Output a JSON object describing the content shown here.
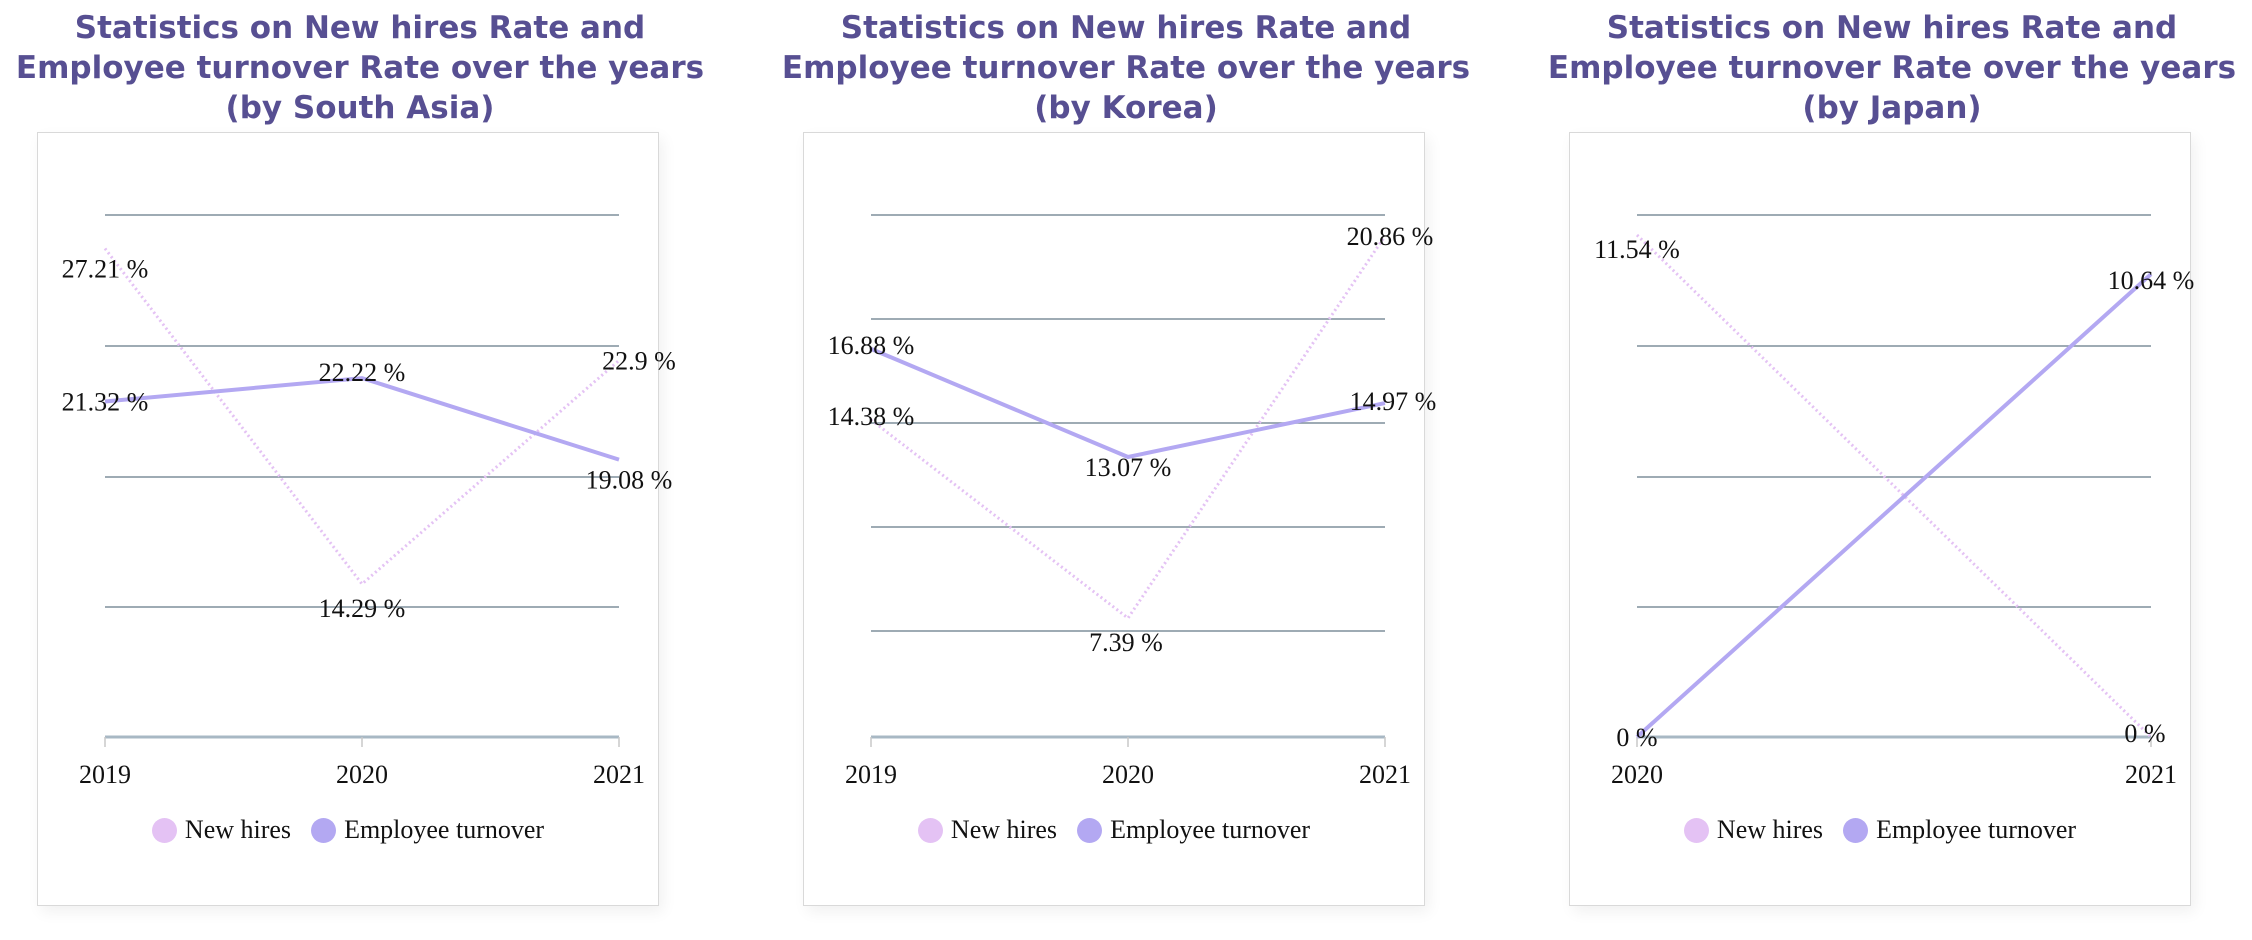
{
  "colors": {
    "new_hires": "#e4c2f4",
    "turnover": "#b3a8f2",
    "title": "#574f92",
    "grid": "#7f8f9c"
  },
  "charts": [
    {
      "title_lines": [
        "Statistics on New hires Rate and",
        "Employee turnover Rate over the years",
        "(by South Asia)"
      ],
      "legend": [
        "New hires",
        "Employee turnover"
      ],
      "chart_data": {
        "type": "line",
        "categories": [
          "2019",
          "2020",
          "2021"
        ],
        "series": [
          {
            "name": "New hires",
            "values": [
              27.21,
              14.29,
              22.9
            ],
            "labels": [
              "27.21 %",
              "14.29 %",
              "22.9 %"
            ]
          },
          {
            "name": "Employee turnover",
            "values": [
              21.32,
              22.22,
              19.08
            ],
            "labels": [
              "21.32 %",
              "22.22 %",
              "19.08 %"
            ]
          }
        ],
        "ylim": [
          8.4,
          28.5
        ],
        "grid": true,
        "legend_position": "bottom"
      }
    },
    {
      "title_lines": [
        "Statistics on New hires Rate and",
        "Employee turnover Rate over the years",
        "(by Korea)"
      ],
      "legend": [
        "New hires",
        "Employee turnover"
      ],
      "chart_data": {
        "type": "line",
        "categories": [
          "2019",
          "2020",
          "2021"
        ],
        "series": [
          {
            "name": "New hires",
            "values": [
              14.38,
              7.39,
              20.86
            ],
            "labels": [
              "14.38 %",
              "7.39 %",
              "20.86 %"
            ]
          },
          {
            "name": "Employee turnover",
            "values": [
              16.88,
              13.07,
              14.97
            ],
            "labels": [
              "16.88 %",
              "13.07 %",
              "14.97 %"
            ]
          }
        ],
        "ylim": [
          3.2,
          21.6
        ],
        "grid": true,
        "legend_position": "bottom"
      }
    },
    {
      "title_lines": [
        "Statistics on New hires Rate and",
        "Employee turnover Rate over the years",
        "(by Japan)"
      ],
      "legend": [
        "New hires",
        "Employee turnover"
      ],
      "chart_data": {
        "type": "line",
        "categories": [
          "2020",
          "2021"
        ],
        "series": [
          {
            "name": "New hires",
            "values": [
              11.54,
              0
            ],
            "labels": [
              "11.54 %",
              "0 %"
            ]
          },
          {
            "name": "Employee turnover",
            "values": [
              0,
              10.64
            ],
            "labels": [
              "0 %",
              "10.64 %"
            ]
          }
        ],
        "ylim": [
          0,
          12
        ],
        "grid": true,
        "legend_position": "bottom"
      }
    }
  ]
}
